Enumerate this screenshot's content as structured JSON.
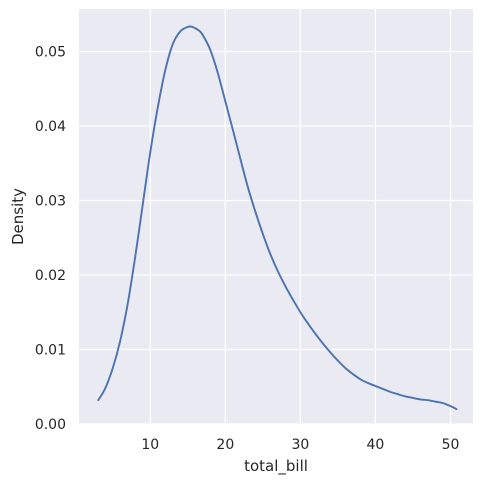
{
  "chart_data": {
    "type": "line",
    "xlabel": "total_bill",
    "ylabel": "Density",
    "xlim": [
      0.5,
      53
    ],
    "ylim": [
      0,
      0.0557
    ],
    "grid": true,
    "x_ticks": [
      10,
      20,
      30,
      40,
      50
    ],
    "x_tick_labels": [
      "10",
      "20",
      "30",
      "40",
      "50"
    ],
    "y_ticks": [
      0.0,
      0.01,
      0.02,
      0.03,
      0.04,
      0.05
    ],
    "y_tick_labels": [
      "0.00",
      "0.01",
      "0.02",
      "0.03",
      "0.04",
      "0.05"
    ],
    "colors": {
      "background": "#eaeaf2",
      "grid": "#ffffff",
      "line": "#4c72b0"
    },
    "series": [
      {
        "x": [
          3.07,
          4.0,
          5.0,
          6.0,
          7.0,
          8.0,
          9.0,
          10.0,
          11.0,
          12.0,
          13.0,
          14.0,
          15.0,
          15.6,
          16.5,
          17.0,
          18.0,
          19.0,
          20.0,
          21.0,
          22.0,
          23.0,
          24.0,
          25.0,
          26.0,
          27.0,
          28.0,
          29.0,
          30.0,
          31.0,
          32.0,
          33.0,
          34.0,
          35.0,
          36.0,
          37.0,
          38.0,
          39.0,
          40.0,
          41.0,
          42.0,
          43.0,
          44.0,
          45.0,
          46.0,
          47.0,
          48.0,
          49.0,
          50.0,
          50.81
        ],
        "y": [
          0.0032,
          0.0048,
          0.0075,
          0.0112,
          0.0162,
          0.0225,
          0.0295,
          0.0365,
          0.0425,
          0.0475,
          0.051,
          0.0527,
          0.0533,
          0.0533,
          0.0528,
          0.0522,
          0.0502,
          0.0471,
          0.0433,
          0.0395,
          0.0356,
          0.0318,
          0.0285,
          0.0255,
          0.0228,
          0.0205,
          0.0185,
          0.0167,
          0.015,
          0.0135,
          0.0121,
          0.0108,
          0.0096,
          0.0085,
          0.0075,
          0.0067,
          0.006,
          0.0055,
          0.0051,
          0.0047,
          0.0043,
          0.004,
          0.0037,
          0.0035,
          0.0033,
          0.0032,
          0.003,
          0.0028,
          0.0024,
          0.002
        ]
      }
    ]
  }
}
